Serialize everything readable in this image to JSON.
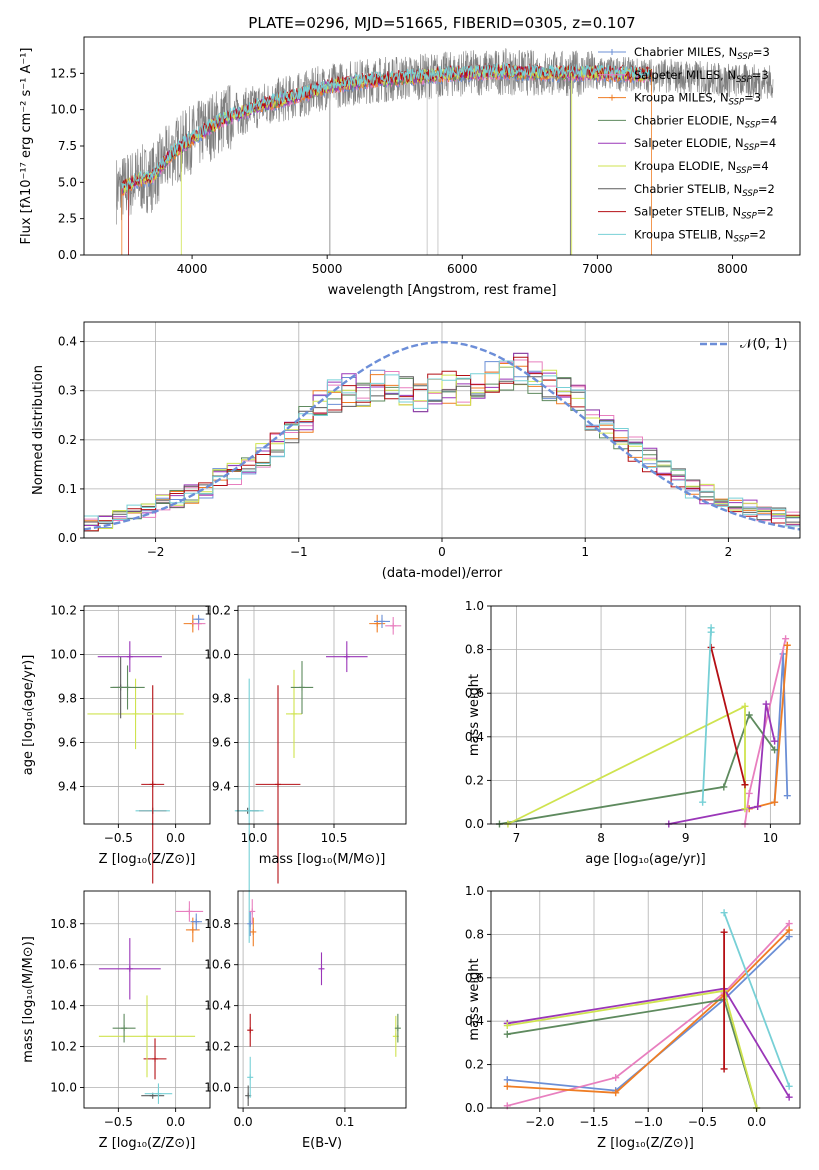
{
  "colors": {
    "grid": "#b0b0b0",
    "norm": "#6c8ed8",
    "series": [
      "#6b8fd6",
      "#e87fbf",
      "#ef7d24",
      "#5e8a5e",
      "#9a36b8",
      "#cfe34f",
      "#5b5b5b",
      "#b40f14",
      "#77d0d6"
    ]
  },
  "chart_data": [
    {
      "type": "line",
      "title": "PLATE=0296, MJD=51665, FIBERID=0305, z=0.107",
      "xlabel": "wavelength [Angstrom, rest frame]",
      "ylabel": "Flux [fλ10⁻¹⁷ erg cm⁻² s⁻¹ A⁻¹]",
      "xlim": [
        3200,
        8500
      ],
      "ylim": [
        0,
        15
      ],
      "xticks": [
        4000,
        5000,
        6000,
        7000,
        8000
      ],
      "yticks": [
        0.0,
        2.5,
        5.0,
        7.5,
        10.0,
        12.5
      ],
      "legend_position": "right",
      "series": [
        {
          "name": "Chabrier MILES, N_SSP=3",
          "legend": "Chabrier MILES, N",
          "sub": "SSP",
          "suffix": "=3"
        },
        {
          "name": "Salpeter MILES, N_SSP=3",
          "legend": "Salpeter MILES, N",
          "sub": "SSP",
          "suffix": "=3"
        },
        {
          "name": "Kroupa MILES, N_SSP=3",
          "legend": "Kroupa MILES, N",
          "sub": "SSP",
          "suffix": "=3"
        },
        {
          "name": "Chabrier ELODIE, N_SSP=4",
          "legend": "Chabrier ELODIE, N",
          "sub": "SSP",
          "suffix": "=4"
        },
        {
          "name": "Salpeter ELODIE, N_SSP=4",
          "legend": "Salpeter ELODIE, N",
          "sub": "SSP",
          "suffix": "=4"
        },
        {
          "name": "Kroupa ELODIE, N_SSP=4",
          "legend": "Kroupa ELODIE, N",
          "sub": "SSP",
          "suffix": "=4"
        },
        {
          "name": "Chabrier STELIB, N_SSP=2",
          "legend": "Chabrier STELIB, N",
          "sub": "SSP",
          "suffix": "=2"
        },
        {
          "name": "Salpeter STELIB, N_SSP=2",
          "legend": "Salpeter STELIB, N",
          "sub": "SSP",
          "suffix": "=2"
        },
        {
          "name": "Kroupa STELIB, N_SSP=2",
          "legend": "Kroupa STELIB, N",
          "sub": "SSP",
          "suffix": "=2"
        }
      ],
      "continuum": {
        "x": [
          3470,
          3600,
          3700,
          3850,
          4000,
          4200,
          4500,
          4800,
          5000,
          5300,
          5600,
          6000,
          6300,
          6600,
          7000,
          7300,
          7600,
          8000,
          8300
        ],
        "y": [
          4.5,
          5.2,
          5.3,
          7.0,
          8.0,
          9.2,
          10.3,
          11.0,
          11.6,
          12.0,
          12.2,
          12.5,
          12.6,
          12.5,
          12.5,
          12.4,
          12.3,
          12.0,
          11.9
        ]
      },
      "observed_data_range": [
        3440,
        8300
      ],
      "model_range": [
        3480,
        7400
      ]
    },
    {
      "type": "bar",
      "xlabel": "(data-model)/error",
      "ylabel": "Normed distribution",
      "xlim": [
        -2.5,
        2.5
      ],
      "ylim": [
        0,
        0.44
      ],
      "xticks": [
        -2,
        -1,
        0,
        1,
        2
      ],
      "yticks": [
        0.0,
        0.1,
        0.2,
        0.3,
        0.4
      ],
      "legend_position": "top-right",
      "reference_curve": {
        "name": "𝒩(0, 1)",
        "mean": 0,
        "sigma": 1
      },
      "bin_width": 0.1,
      "envelope_centers": [
        -2.45,
        -2.35,
        -2.25,
        -2.15,
        -2.05,
        -1.95,
        -1.85,
        -1.75,
        -1.65,
        -1.55,
        -1.45,
        -1.35,
        -1.25,
        -1.15,
        -1.05,
        -0.95,
        -0.85,
        -0.75,
        -0.65,
        -0.55,
        -0.45,
        -0.35,
        -0.25,
        -0.15,
        -0.05,
        0.05,
        0.15,
        0.25,
        0.35,
        0.45,
        0.55,
        0.65,
        0.75,
        0.85,
        0.95,
        1.05,
        1.15,
        1.25,
        1.35,
        1.45,
        1.55,
        1.65,
        1.75,
        1.85,
        1.95,
        2.05,
        2.15,
        2.25,
        2.35,
        2.45
      ],
      "envelope_values": [
        0.03,
        0.035,
        0.04,
        0.05,
        0.055,
        0.07,
        0.08,
        0.09,
        0.1,
        0.12,
        0.13,
        0.15,
        0.17,
        0.19,
        0.21,
        0.24,
        0.27,
        0.29,
        0.3,
        0.3,
        0.31,
        0.31,
        0.3,
        0.29,
        0.3,
        0.31,
        0.3,
        0.31,
        0.33,
        0.33,
        0.35,
        0.33,
        0.31,
        0.3,
        0.28,
        0.25,
        0.23,
        0.2,
        0.18,
        0.16,
        0.14,
        0.12,
        0.1,
        0.09,
        0.08,
        0.07,
        0.06,
        0.05,
        0.045,
        0.04
      ]
    },
    {
      "type": "scatter",
      "xlabel": "Z [log₁₀(Z/Z⊙)]",
      "ylabel": "age  [log₁₀(age/yr)]",
      "xlim": [
        -0.8,
        0.3
      ],
      "ylim": [
        9.23,
        10.22
      ],
      "xticks": [
        -0.5,
        0.0
      ],
      "yticks": [
        9.4,
        9.6,
        9.8,
        10.0,
        10.2
      ],
      "points": [
        {
          "x": -0.2,
          "y": 9.29,
          "xerr": 0.12,
          "yerr": 0.0,
          "c": 7
        },
        {
          "x": -0.2,
          "y": 9.29,
          "xerr": 0.15,
          "yerr": 0.0,
          "c": 8
        },
        {
          "x": -0.2,
          "y": 9.41,
          "xerr": 0.1,
          "yerr": 0.45,
          "c": 7
        },
        {
          "x": -0.35,
          "y": 9.73,
          "xerr": 0.42,
          "yerr": 0.16,
          "c": 5
        },
        {
          "x": -0.48,
          "y": 9.85,
          "xerr": 0.07,
          "yerr": 0.14,
          "c": 6
        },
        {
          "x": -0.42,
          "y": 9.85,
          "xerr": 0.15,
          "yerr": 0.1,
          "c": 3
        },
        {
          "x": -0.4,
          "y": 9.99,
          "xerr": 0.28,
          "yerr": 0.07,
          "c": 4
        },
        {
          "x": 0.15,
          "y": 10.14,
          "xerr": 0.08,
          "yerr": 0.04,
          "c": 2
        },
        {
          "x": 0.2,
          "y": 10.14,
          "xerr": 0.06,
          "yerr": 0.03,
          "c": 1
        },
        {
          "x": 0.2,
          "y": 10.16,
          "xerr": 0.05,
          "yerr": 0.02,
          "c": 0
        }
      ]
    },
    {
      "type": "scatter",
      "xlabel": "mass [log₁₀(M/M⊙)]",
      "ylabel": "",
      "xlim": [
        9.9,
        10.95
      ],
      "ylim": [
        9.23,
        10.22
      ],
      "xticks": [
        10.0,
        10.5
      ],
      "yticks": [
        9.4,
        9.6,
        9.8,
        10.0,
        10.2
      ],
      "points": [
        {
          "x": 9.96,
          "y": 9.29,
          "xerr": 0.07,
          "yerr": 0.0,
          "c": 6
        },
        {
          "x": 9.97,
          "y": 9.29,
          "xerr": 0.09,
          "yerr": 0.6,
          "c": 8
        },
        {
          "x": 10.15,
          "y": 9.41,
          "xerr": 0.14,
          "yerr": 0.45,
          "c": 7
        },
        {
          "x": 10.25,
          "y": 9.73,
          "xerr": 0.05,
          "yerr": 0.2,
          "c": 5
        },
        {
          "x": 10.3,
          "y": 9.85,
          "xerr": 0.07,
          "yerr": 0.12,
          "c": 3
        },
        {
          "x": 10.58,
          "y": 9.99,
          "xerr": 0.13,
          "yerr": 0.07,
          "c": 4
        },
        {
          "x": 10.77,
          "y": 10.14,
          "xerr": 0.05,
          "yerr": 0.04,
          "c": 2
        },
        {
          "x": 10.8,
          "y": 10.15,
          "xerr": 0.05,
          "yerr": 0.03,
          "c": 0
        },
        {
          "x": 10.87,
          "y": 10.13,
          "xerr": 0.05,
          "yerr": 0.04,
          "c": 1
        }
      ]
    },
    {
      "type": "line",
      "xlabel": "age  [log₁₀(age/yr)]",
      "ylabel": "mass weight",
      "xlim": [
        6.7,
        10.35
      ],
      "ylim": [
        0,
        1
      ],
      "xticks": [
        7,
        8,
        9,
        10
      ],
      "yticks": [
        0.0,
        0.2,
        0.4,
        0.6,
        0.8,
        1.0
      ],
      "series": [
        {
          "c": 0,
          "x": [
            10.2,
            10.15,
            10.05
          ],
          "y": [
            0.13,
            0.78,
            0.1
          ]
        },
        {
          "c": 1,
          "x": [
            9.7,
            9.75,
            10.18
          ],
          "y": [
            0.0,
            0.14,
            0.85
          ]
        },
        {
          "c": 2,
          "x": [
            9.75,
            10.05,
            10.2
          ],
          "y": [
            0.07,
            0.1,
            0.82
          ]
        },
        {
          "c": 3,
          "x": [
            6.8,
            9.45,
            9.75,
            10.05
          ],
          "y": [
            0.0,
            0.17,
            0.5,
            0.34
          ]
        },
        {
          "c": 4,
          "x": [
            8.8,
            9.85,
            9.95,
            10.05
          ],
          "y": [
            0.0,
            0.08,
            0.55,
            0.38
          ]
        },
        {
          "c": 5,
          "x": [
            6.9,
            9.7,
            9.7
          ],
          "y": [
            0.0,
            0.54,
            0.07
          ]
        },
        {
          "c": 7,
          "x": [
            9.3,
            9.7
          ],
          "y": [
            0.81,
            0.18
          ]
        },
        {
          "c": 8,
          "x": [
            9.2,
            9.3,
            9.3
          ],
          "y": [
            0.1,
            0.9,
            0.88
          ]
        }
      ]
    },
    {
      "type": "scatter",
      "xlabel": "Z [log₁₀(Z/Z⊙)]",
      "ylabel": "mass [log₁₀(M/M⊙)]",
      "xlim": [
        -0.8,
        0.3
      ],
      "ylim": [
        9.9,
        10.96
      ],
      "xticks": [
        -0.5,
        0.0
      ],
      "yticks": [
        10.0,
        10.2,
        10.4,
        10.6,
        10.8
      ],
      "points": [
        {
          "x": -0.2,
          "y": 9.96,
          "xerr": 0.1,
          "yerr": 0.0,
          "c": 6
        },
        {
          "x": -0.15,
          "y": 9.97,
          "xerr": 0.12,
          "yerr": 0.05,
          "c": 8
        },
        {
          "x": -0.18,
          "y": 10.14,
          "xerr": 0.1,
          "yerr": 0.1,
          "c": 7
        },
        {
          "x": -0.25,
          "y": 10.25,
          "xerr": 0.42,
          "yerr": 0.2,
          "c": 5
        },
        {
          "x": -0.45,
          "y": 10.29,
          "xerr": 0.1,
          "yerr": 0.07,
          "c": 3
        },
        {
          "x": -0.4,
          "y": 10.58,
          "xerr": 0.27,
          "yerr": 0.15,
          "c": 4
        },
        {
          "x": 0.15,
          "y": 10.77,
          "xerr": 0.06,
          "yerr": 0.06,
          "c": 2
        },
        {
          "x": 0.18,
          "y": 10.81,
          "xerr": 0.05,
          "yerr": 0.04,
          "c": 0
        },
        {
          "x": 0.12,
          "y": 10.86,
          "xerr": 0.12,
          "yerr": 0.05,
          "c": 1
        }
      ]
    },
    {
      "type": "scatter",
      "xlabel": "E(B-V)",
      "ylabel": "",
      "xlim": [
        -0.005,
        0.16
      ],
      "ylim": [
        9.9,
        10.96
      ],
      "xticks": [
        0.0,
        0.1
      ],
      "yticks": [
        10.0,
        10.2,
        10.4,
        10.6,
        10.8
      ],
      "points": [
        {
          "x": 0.005,
          "y": 9.96,
          "xerr": 0,
          "yerr": 0.05,
          "c": 6
        },
        {
          "x": 0.007,
          "y": 10.05,
          "xerr": 0,
          "yerr": 0.1,
          "c": 8
        },
        {
          "x": 0.007,
          "y": 10.28,
          "xerr": 0,
          "yerr": 0.08,
          "c": 7
        },
        {
          "x": 0.007,
          "y": 10.8,
          "xerr": 0,
          "yerr": 0.06,
          "c": 0
        },
        {
          "x": 0.01,
          "y": 10.76,
          "xerr": 0,
          "yerr": 0.07,
          "c": 2
        },
        {
          "x": 0.009,
          "y": 10.86,
          "xerr": 0,
          "yerr": 0.06,
          "c": 1
        },
        {
          "x": 0.077,
          "y": 10.58,
          "xerr": 0,
          "yerr": 0.08,
          "c": 4
        },
        {
          "x": 0.15,
          "y": 10.25,
          "xerr": 0,
          "yerr": 0.1,
          "c": 5
        },
        {
          "x": 0.152,
          "y": 10.29,
          "xerr": 0,
          "yerr": 0.07,
          "c": 3
        }
      ]
    },
    {
      "type": "line",
      "xlabel": "Z [log₁₀(Z/Z⊙)]",
      "ylabel": "mass weight",
      "xlim": [
        -2.45,
        0.4
      ],
      "ylim": [
        0,
        1
      ],
      "xticks": [
        -2.0,
        -1.5,
        -1.0,
        -0.5,
        0.0
      ],
      "yticks": [
        0.0,
        0.2,
        0.4,
        0.6,
        0.8,
        1.0
      ],
      "series": [
        {
          "c": 0,
          "x": [
            -2.3,
            -1.3,
            -0.3,
            0.3
          ],
          "y": [
            0.13,
            0.08,
            0.5,
            0.79
          ]
        },
        {
          "c": 1,
          "x": [
            -2.3,
            -1.3,
            -0.3,
            0.3
          ],
          "y": [
            0.01,
            0.14,
            0.53,
            0.85
          ]
        },
        {
          "c": 2,
          "x": [
            -2.3,
            -1.3,
            -0.3,
            0.3
          ],
          "y": [
            0.1,
            0.07,
            0.52,
            0.82
          ]
        },
        {
          "c": 3,
          "x": [
            -2.3,
            -0.3,
            0.0
          ],
          "y": [
            0.34,
            0.5,
            0.0
          ]
        },
        {
          "c": 4,
          "x": [
            -2.3,
            -0.3,
            0.3
          ],
          "y": [
            0.39,
            0.55,
            0.05
          ]
        },
        {
          "c": 5,
          "x": [
            -2.3,
            -0.3,
            0.0
          ],
          "y": [
            0.38,
            0.54,
            0.0
          ]
        },
        {
          "c": 7,
          "x": [
            -0.3,
            -0.3
          ],
          "y": [
            0.81,
            0.18
          ]
        },
        {
          "c": 8,
          "x": [
            -0.3,
            0.3
          ],
          "y": [
            0.9,
            0.1
          ]
        }
      ]
    }
  ]
}
